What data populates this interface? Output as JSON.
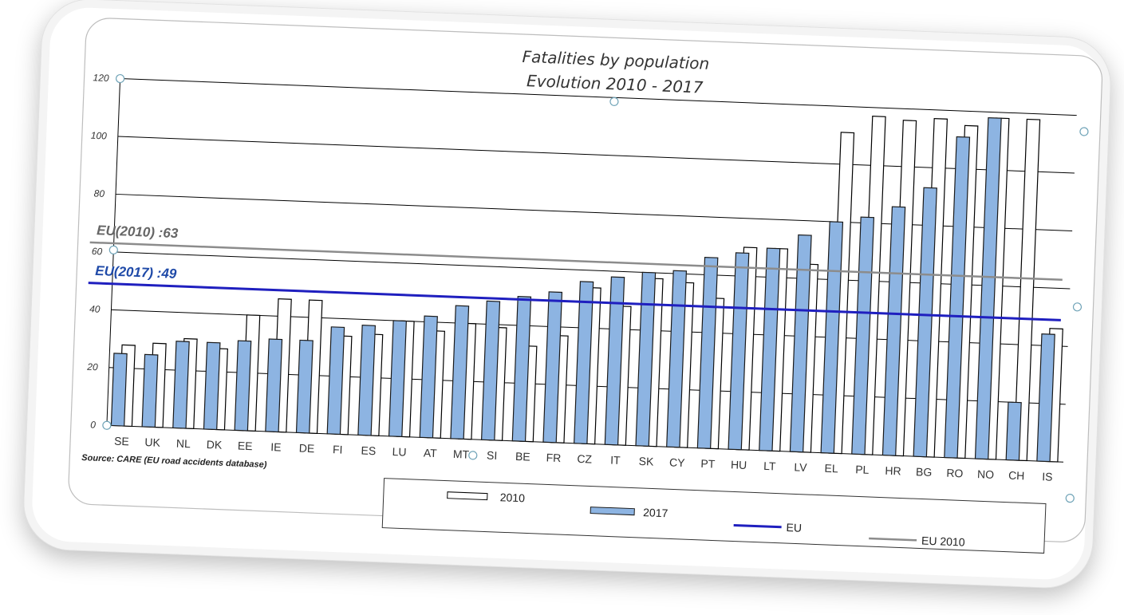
{
  "chart_data": {
    "type": "bar",
    "title_lines": [
      "Fatalities by population",
      "Evolution 2010 - 2017"
    ],
    "categories": [
      "SE",
      "UK",
      "NL",
      "DK",
      "EE",
      "IE",
      "DE",
      "FI",
      "ES",
      "LU",
      "AT",
      "MT",
      "SI",
      "BE",
      "FR",
      "CZ",
      "IT",
      "SK",
      "CY",
      "PT",
      "HU",
      "LT",
      "LV",
      "EL",
      "PL",
      "HR",
      "BG",
      "RO",
      "NO",
      "CH",
      "IS"
    ],
    "series": [
      {
        "name": "2010",
        "color": "#ffffff",
        "values": [
          28,
          29,
          31,
          28,
          40,
          46,
          46,
          34,
          35,
          40,
          37,
          40,
          39,
          33,
          37,
          54,
          48,
          58,
          57,
          52,
          70,
          70,
          65,
          111,
          117,
          116,
          117,
          115,
          118,
          118,
          46
        ]
      },
      {
        "name": "2017",
        "color": "#8db4e2",
        "values": [
          25,
          25,
          30,
          30,
          31,
          32,
          32,
          37,
          38,
          40,
          42,
          46,
          48,
          50,
          52,
          56,
          58,
          60,
          61,
          66,
          68,
          70,
          75,
          80,
          82,
          86,
          93,
          111,
          118,
          20,
          44
        ]
      }
    ],
    "reference_lines": [
      {
        "name": "EU",
        "label": "EU(2017) :49",
        "value": 49,
        "color": "#1f1fbf"
      },
      {
        "name": "EU 2010",
        "label": "EU(2010) :63",
        "value": 63,
        "color": "#8c8c8c"
      }
    ],
    "ylim": [
      0,
      120
    ],
    "yticks": [
      0,
      20,
      40,
      60,
      80,
      100,
      120
    ],
    "grid": true,
    "legend": {
      "position": "bottom",
      "entries": [
        "2010",
        "2017",
        "EU",
        "EU 2010"
      ]
    },
    "source": "Source: CARE (EU road accidents database)",
    "xlabel": "",
    "ylabel": ""
  }
}
